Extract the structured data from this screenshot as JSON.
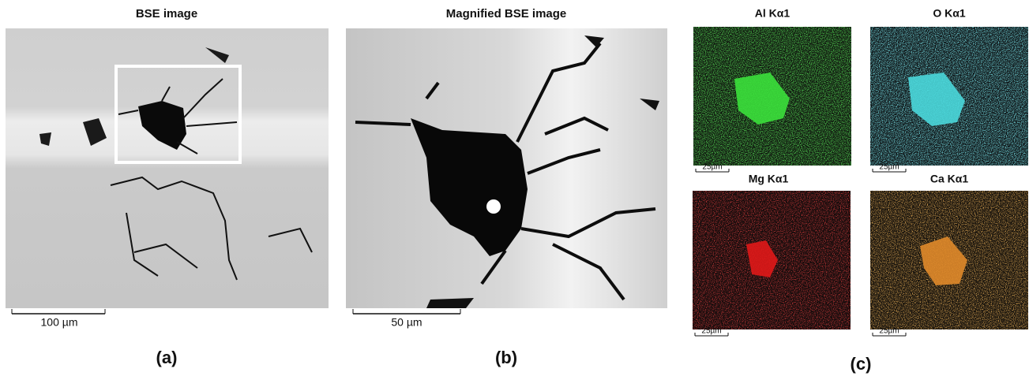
{
  "panels": [
    {
      "title": "BSE image",
      "scale_bar": "100 µm",
      "label": "(a)"
    },
    {
      "title": "Magnified BSE image",
      "scale_bar": "50 µm",
      "label": "(b)"
    },
    {
      "label": "(c)",
      "maps": [
        {
          "title": "Al Kα1",
          "scale_bar": "25µm"
        },
        {
          "title": "O Kα1",
          "scale_bar": "25µm"
        },
        {
          "title": "Mg Kα1",
          "scale_bar": "25µm"
        },
        {
          "title": "Ca Kα1",
          "scale_bar": "25µm"
        }
      ]
    }
  ]
}
